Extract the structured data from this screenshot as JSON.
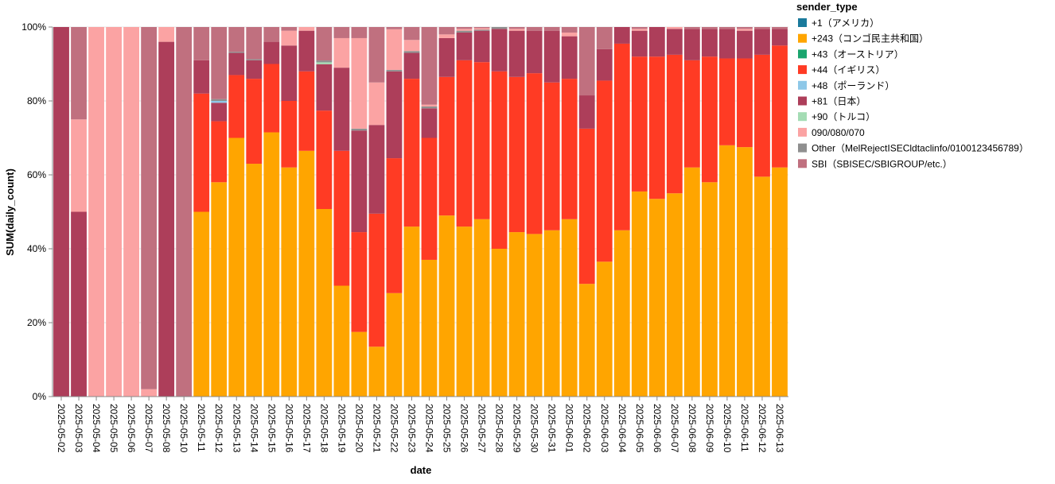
{
  "chart_data": {
    "type": "bar",
    "stacked": true,
    "normalized": true,
    "xlabel": "date",
    "ylabel": "SUM(daily_count)",
    "y_ticks": [
      "0%",
      "20%",
      "40%",
      "60%",
      "80%",
      "100%"
    ],
    "ylim": [
      0,
      100
    ],
    "legend_title": "sender_type",
    "legend_position": "top-right",
    "series_order_bottom_to_top": [
      "+243（コンゴ民主共和国）",
      "+44（イギリス）",
      "+81（日本）",
      "+90（トルコ）",
      "+43（オーストリア）",
      "+48（ポーランド）",
      "Other（MelRejectISECldtaclinfo/0100123456789）",
      "+1（アメリカ）",
      "090/080/070",
      "SBI（SBISEC/SBIGROUP/etc.）"
    ],
    "legend": [
      {
        "name": "+1（アメリカ）",
        "color": "#1a7a9c"
      },
      {
        "name": "+243（コンゴ民主共和国）",
        "color": "#ffa500"
      },
      {
        "name": "+43（オーストリア）",
        "color": "#1aa56e"
      },
      {
        "name": "+44（イギリス）",
        "color": "#ff3b24"
      },
      {
        "name": "+48（ポーランド）",
        "color": "#8ec8e8"
      },
      {
        "name": "+81（日本）",
        "color": "#ad3e5a"
      },
      {
        "name": "+90（トルコ）",
        "color": "#a4dcb4"
      },
      {
        "name": "090/080/070",
        "color": "#fba3a3"
      },
      {
        "name": "Other（MelRejectISECldtaclinfo/0100123456789）",
        "color": "#8f8f8f"
      },
      {
        "name": "SBI（SBISEC/SBIGROUP/etc.）",
        "color": "#c0707f"
      }
    ],
    "categories": [
      "2025-05-02",
      "2025-05-03",
      "2025-05-04",
      "2025-05-05",
      "2025-05-06",
      "2025-05-07",
      "2025-05-08",
      "2025-05-10",
      "2025-05-11",
      "2025-05-12",
      "2025-05-13",
      "2025-05-14",
      "2025-05-15",
      "2025-05-16",
      "2025-05-17",
      "2025-05-18",
      "2025-05-19",
      "2025-05-20",
      "2025-05-21",
      "2025-05-22",
      "2025-05-23",
      "2025-05-24",
      "2025-05-25",
      "2025-05-26",
      "2025-05-27",
      "2025-05-28",
      "2025-05-29",
      "2025-05-30",
      "2025-05-31",
      "2025-06-01",
      "2025-06-02",
      "2025-06-03",
      "2025-06-04",
      "2025-06-05",
      "2025-06-06",
      "2025-06-07",
      "2025-06-08",
      "2025-06-09",
      "2025-06-10",
      "2025-06-11",
      "2025-06-12",
      "2025-06-13"
    ],
    "series": [
      {
        "name": "+243（コンゴ民主共和国）",
        "values": [
          0,
          0,
          0,
          0,
          0,
          0,
          0,
          0,
          50,
          58,
          70,
          63,
          71.5,
          62,
          66.5,
          50.5,
          30,
          17.5,
          13.5,
          28,
          46,
          37,
          49,
          46,
          48,
          40,
          44.5,
          44,
          45,
          48,
          30.5,
          36.5,
          45,
          55.5,
          53.5,
          55,
          62,
          58,
          68,
          67.5,
          59.5,
          62
        ]
      },
      {
        "name": "+44（イギリス）",
        "values": [
          0,
          0,
          0,
          0,
          0,
          0,
          0,
          0,
          32,
          16.5,
          17,
          23,
          18.5,
          18,
          21.5,
          26.5,
          36.5,
          27,
          36,
          36.5,
          40,
          33,
          37.5,
          45,
          42.5,
          48,
          42,
          43.5,
          40,
          38,
          42,
          49,
          50.5,
          36.5,
          38.5,
          37.5,
          29,
          34,
          23.5,
          24,
          33,
          33
        ]
      },
      {
        "name": "+81（日本）",
        "values": [
          100,
          50,
          0,
          0,
          0,
          0,
          96,
          0,
          9,
          5,
          6,
          5,
          6,
          15,
          11,
          12.5,
          22.5,
          27.5,
          24,
          23.5,
          7,
          8,
          10.5,
          7.5,
          8.5,
          11.5,
          12.5,
          11.5,
          14,
          11.5,
          9,
          8.5,
          4.5,
          7,
          8,
          7,
          8.5,
          7.5,
          8,
          7.5,
          7,
          4.5
        ]
      },
      {
        "name": "+90（トルコ）",
        "values": [
          0,
          0,
          0,
          0,
          0,
          0,
          0,
          0,
          0,
          0,
          0,
          0,
          0,
          0,
          0,
          0.5,
          0,
          0,
          0,
          0,
          0,
          0,
          0,
          0,
          0,
          0,
          0,
          0,
          0,
          0,
          0,
          0,
          0,
          0,
          0,
          0,
          0,
          0,
          0,
          0,
          0,
          0
        ]
      },
      {
        "name": "+43（オーストリア）",
        "values": [
          0,
          0,
          0,
          0,
          0,
          0,
          0,
          0,
          0,
          0,
          0,
          0,
          0,
          0,
          0,
          0,
          0,
          0,
          0,
          0,
          0,
          0,
          0,
          0,
          0,
          0,
          0,
          0,
          0,
          0,
          0,
          0,
          0,
          0,
          0,
          0,
          0,
          0,
          0,
          0,
          0,
          0
        ]
      },
      {
        "name": "+48（ポーランド）",
        "values": [
          0,
          0,
          0,
          0,
          0,
          0,
          0,
          0,
          0,
          0.5,
          0,
          0,
          0,
          0,
          0,
          0,
          0,
          0,
          0,
          0,
          0,
          0,
          0,
          0,
          0,
          0,
          0,
          0,
          0,
          0,
          0,
          0,
          0,
          0,
          0,
          0,
          0,
          0,
          0,
          0,
          0,
          0
        ]
      },
      {
        "name": "Other（MelRejectISECldtaclinfo/0100123456789）",
        "values": [
          0,
          0,
          0,
          0,
          0,
          0,
          0,
          0,
          0,
          0.5,
          0.3,
          0.3,
          0,
          0,
          0,
          0.5,
          0,
          0.5,
          0,
          0.4,
          0.5,
          0.5,
          0,
          0.5,
          0.3,
          0.5,
          0,
          0,
          0,
          0,
          0,
          0,
          0,
          0,
          0,
          0,
          0,
          0,
          0,
          0,
          0,
          0
        ]
      },
      {
        "name": "+1（アメリカ）",
        "values": [
          0,
          0,
          0,
          0,
          0,
          0,
          0,
          0,
          0,
          0,
          0,
          0,
          0,
          0,
          0,
          0,
          0,
          0,
          0,
          0,
          0,
          0,
          0,
          0,
          0,
          0,
          0,
          0,
          0,
          0,
          0,
          0,
          0,
          0,
          0,
          0,
          0,
          0,
          0,
          0,
          0,
          0
        ]
      },
      {
        "name": "090/080/070",
        "values": [
          0,
          25,
          100,
          100,
          100,
          2,
          4,
          0,
          0,
          0,
          0,
          0,
          0,
          4,
          1,
          0,
          8,
          24.5,
          11.5,
          11,
          3,
          0.5,
          1,
          0.5,
          0.4,
          0,
          0.5,
          0,
          0,
          1,
          0,
          0,
          0,
          0.5,
          0,
          0.5,
          0,
          0,
          0,
          0.5,
          0,
          0
        ]
      },
      {
        "name": "SBI（SBISEC/SBIGROUP/etc.）",
        "values": [
          0,
          25,
          0,
          0,
          0,
          98,
          0,
          100,
          9,
          19.5,
          6.7,
          8.7,
          4,
          1,
          0,
          9,
          3,
          3,
          15,
          0.6,
          3.5,
          21,
          2,
          0.5,
          0.3,
          0,
          0.5,
          1,
          1,
          1.5,
          18.5,
          6,
          0,
          0.5,
          0,
          0,
          0.5,
          0.5,
          0.5,
          0.5,
          0.5,
          0.5
        ]
      }
    ]
  }
}
